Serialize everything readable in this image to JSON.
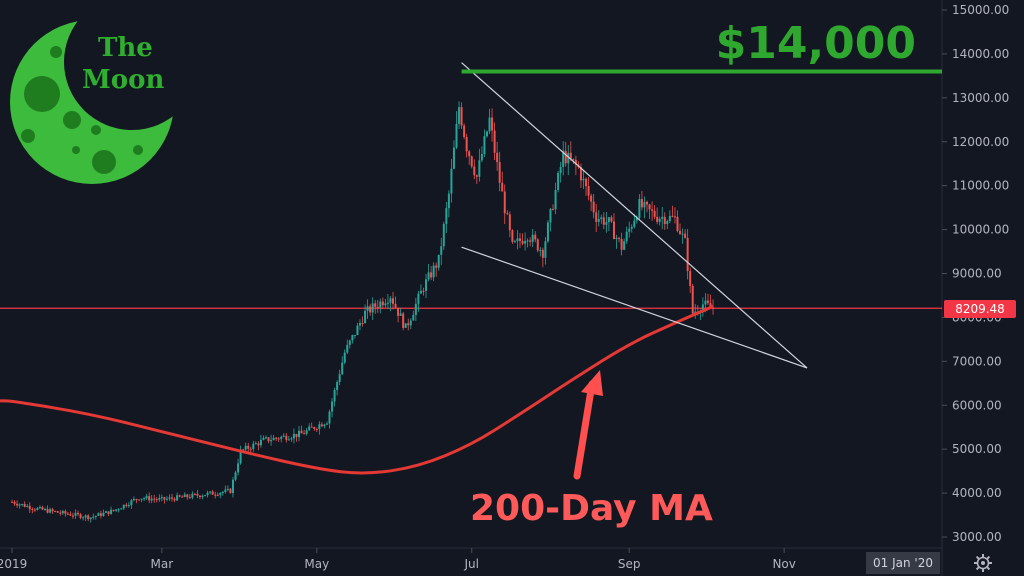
{
  "logo": {
    "line1": "The",
    "line2": "Moon",
    "color": "#3dbb3d",
    "accent": "#1f7d1f"
  },
  "annotations": {
    "target_label": "$14,000",
    "target_color": "#2ea82e",
    "ma_label": "200-Day MA",
    "ma_color": "#ff4f4f",
    "price_tag": "8209.48",
    "price_tag_color": "#f23645",
    "corner_date": "01 Jan '20",
    "settings_icon": "gear-icon"
  },
  "chart_data": {
    "type": "candlestick",
    "title": "",
    "xlabel": "",
    "ylabel": "",
    "ylim": [
      2800,
      15200
    ],
    "x_tick_labels": [
      "2019",
      "Mar",
      "May",
      "Jul",
      "Sep",
      "Nov"
    ],
    "y_ticks": [
      3000,
      4000,
      5000,
      6000,
      7000,
      8000,
      9000,
      10000,
      11000,
      12000,
      13000,
      14000,
      15000
    ],
    "y_tick_labels": [
      "3000.00",
      "4000.00",
      "5000.00",
      "6000.00",
      "7000.00",
      "8000.00",
      "9000.00",
      "10000.00",
      "11000.00",
      "12000.00",
      "13000.00",
      "14000.00",
      "15000.00"
    ],
    "grid": false,
    "up_color": "#26a69a",
    "down_color": "#ef5350",
    "close_path": [
      [
        "2019-01-01",
        3800
      ],
      [
        "2019-01-10",
        3650
      ],
      [
        "2019-01-20",
        3550
      ],
      [
        "2019-02-01",
        3450
      ],
      [
        "2019-02-10",
        3600
      ],
      [
        "2019-02-20",
        3900
      ],
      [
        "2019-03-01",
        3850
      ],
      [
        "2019-03-15",
        3950
      ],
      [
        "2019-03-28",
        4050
      ],
      [
        "2019-04-01",
        4950
      ],
      [
        "2019-04-10",
        5200
      ],
      [
        "2019-04-25",
        5350
      ],
      [
        "2019-05-05",
        5650
      ],
      [
        "2019-05-12",
        7200
      ],
      [
        "2019-05-20",
        8100
      ],
      [
        "2019-05-30",
        8500
      ],
      [
        "2019-06-05",
        7750
      ],
      [
        "2019-06-12",
        8700
      ],
      [
        "2019-06-18",
        9300
      ],
      [
        "2019-06-22",
        10800
      ],
      [
        "2019-06-26",
        12800
      ],
      [
        "2019-06-29",
        11900
      ],
      [
        "2019-07-03",
        11200
      ],
      [
        "2019-07-08",
        12500
      ],
      [
        "2019-07-12",
        11100
      ],
      [
        "2019-07-17",
        9600
      ],
      [
        "2019-07-23",
        9900
      ],
      [
        "2019-07-29",
        9500
      ],
      [
        "2019-08-06",
        11700
      ],
      [
        "2019-08-12",
        11400
      ],
      [
        "2019-08-19",
        10300
      ],
      [
        "2019-08-24",
        10150
      ],
      [
        "2019-08-29",
        9600
      ],
      [
        "2019-09-05",
        10550
      ],
      [
        "2019-09-12",
        10300
      ],
      [
        "2019-09-19",
        10250
      ],
      [
        "2019-09-23",
        9700
      ],
      [
        "2019-09-26",
        8100
      ],
      [
        "2019-09-30",
        8300
      ],
      [
        "2019-10-04",
        8200
      ]
    ],
    "series": [
      {
        "name": "200-Day MA",
        "color": "#e53935",
        "points": [
          [
            "2019-01-01",
            6100
          ],
          [
            "2019-02-01",
            5800
          ],
          [
            "2019-03-01",
            5400
          ],
          [
            "2019-04-01",
            4950
          ],
          [
            "2019-05-01",
            4550
          ],
          [
            "2019-05-20",
            4420
          ],
          [
            "2019-06-10",
            4600
          ],
          [
            "2019-07-01",
            5100
          ],
          [
            "2019-07-20",
            5800
          ],
          [
            "2019-08-10",
            6600
          ],
          [
            "2019-09-01",
            7400
          ],
          [
            "2019-09-20",
            7900
          ],
          [
            "2019-10-04",
            8250
          ]
        ]
      }
    ],
    "trendlines": [
      {
        "name": "upper-trendline",
        "color": "#d1d4dc",
        "points": [
          [
            "2019-06-27",
            13800
          ],
          [
            "2019-11-10",
            6850
          ]
        ]
      },
      {
        "name": "lower-trendline",
        "color": "#d1d4dc",
        "points": [
          [
            "2019-06-27",
            9600
          ],
          [
            "2019-11-10",
            6850
          ]
        ]
      },
      {
        "name": "target-line",
        "color": "#2ea82e",
        "points": [
          [
            "2019-06-27",
            13600
          ],
          [
            "2020-01-01",
            13600
          ]
        ]
      },
      {
        "name": "current-price-line",
        "color": "#f23645",
        "points": [
          [
            "2018-12-20",
            8209.48
          ],
          [
            "2020-01-01",
            8209.48
          ]
        ]
      }
    ]
  }
}
